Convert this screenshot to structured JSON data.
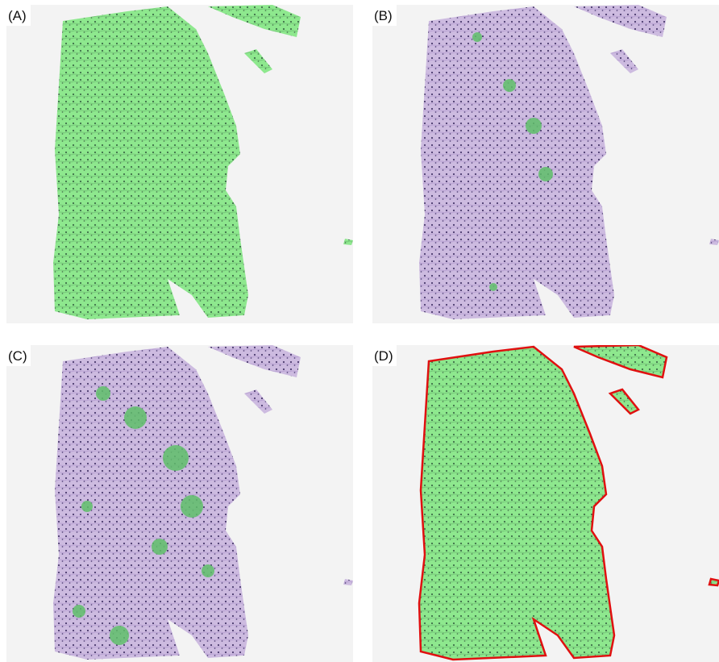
{
  "panels": [
    {
      "label": "(A)"
    },
    {
      "label": "(B)"
    },
    {
      "label": "(C)"
    },
    {
      "label": "(D)"
    }
  ]
}
